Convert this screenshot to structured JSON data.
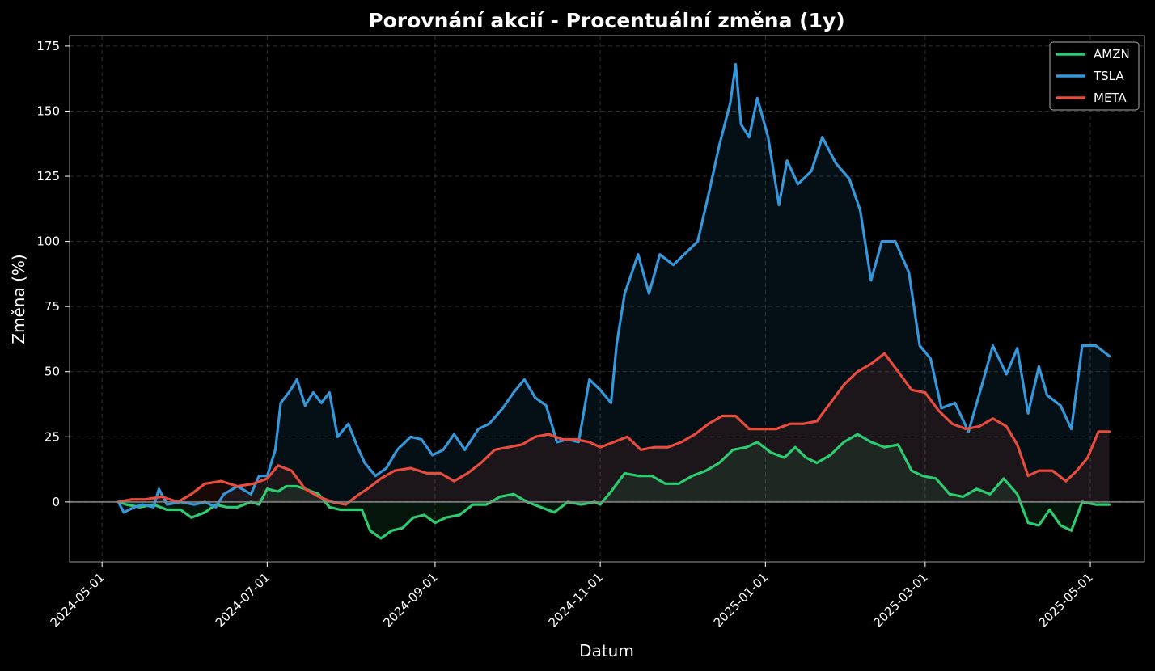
{
  "chart_data": {
    "type": "line",
    "title": "Porovnání akcií - Procentuální změna (1y)",
    "xlabel": "Datum",
    "ylabel": "Změna (%)",
    "xlim": [
      "2024-04-19",
      "2025-05-21"
    ],
    "ylim": [
      -23,
      179
    ],
    "yticks": [
      0,
      25,
      50,
      75,
      100,
      125,
      150,
      175
    ],
    "yticklabels": [
      "0",
      "25",
      "50",
      "75",
      "100",
      "125",
      "150",
      "175"
    ],
    "xticks": [
      "2024-05-01",
      "2024-07-01",
      "2024-09-01",
      "2024-11-01",
      "2025-01-01",
      "2025-03-01",
      "2025-05-01"
    ],
    "xticklabels": [
      "2024-05-01",
      "2024-07-01",
      "2024-09-01",
      "2024-11-01",
      "2025-01-01",
      "2025-03-01",
      "2025-05-01"
    ],
    "grid": true,
    "legend_position": "top-right",
    "baseline": 0,
    "series": [
      {
        "name": "AMZN",
        "color": "#2ecc71",
        "points": [
          [
            "2024-05-07",
            0
          ],
          [
            "2024-05-10",
            -1
          ],
          [
            "2024-05-15",
            -2
          ],
          [
            "2024-05-20",
            -1
          ],
          [
            "2024-05-25",
            -3
          ],
          [
            "2024-05-30",
            -3
          ],
          [
            "2024-06-03",
            -6
          ],
          [
            "2024-06-08",
            -4
          ],
          [
            "2024-06-12",
            -1
          ],
          [
            "2024-06-16",
            -2
          ],
          [
            "2024-06-20",
            -2
          ],
          [
            "2024-06-25",
            0
          ],
          [
            "2024-06-28",
            -1
          ],
          [
            "2024-07-01",
            5
          ],
          [
            "2024-07-05",
            4
          ],
          [
            "2024-07-08",
            6
          ],
          [
            "2024-07-12",
            6
          ],
          [
            "2024-07-15",
            5
          ],
          [
            "2024-07-20",
            3
          ],
          [
            "2024-07-24",
            -2
          ],
          [
            "2024-07-28",
            -3
          ],
          [
            "2024-08-01",
            -3
          ],
          [
            "2024-08-05",
            -3
          ],
          [
            "2024-08-08",
            -11
          ],
          [
            "2024-08-12",
            -14
          ],
          [
            "2024-08-16",
            -11
          ],
          [
            "2024-08-20",
            -10
          ],
          [
            "2024-08-24",
            -6
          ],
          [
            "2024-08-28",
            -5
          ],
          [
            "2024-09-01",
            -8
          ],
          [
            "2024-09-05",
            -6
          ],
          [
            "2024-09-10",
            -5
          ],
          [
            "2024-09-15",
            -1
          ],
          [
            "2024-09-20",
            -1
          ],
          [
            "2024-09-25",
            2
          ],
          [
            "2024-09-30",
            3
          ],
          [
            "2024-10-05",
            0
          ],
          [
            "2024-10-10",
            -2
          ],
          [
            "2024-10-15",
            -4
          ],
          [
            "2024-10-20",
            0
          ],
          [
            "2024-10-25",
            -1
          ],
          [
            "2024-10-30",
            0
          ],
          [
            "2024-11-01",
            -1
          ],
          [
            "2024-11-05",
            4
          ],
          [
            "2024-11-10",
            11
          ],
          [
            "2024-11-15",
            10
          ],
          [
            "2024-11-20",
            10
          ],
          [
            "2024-11-25",
            7
          ],
          [
            "2024-11-30",
            7
          ],
          [
            "2024-12-05",
            10
          ],
          [
            "2024-12-10",
            12
          ],
          [
            "2024-12-15",
            15
          ],
          [
            "2024-12-20",
            20
          ],
          [
            "2024-12-25",
            21
          ],
          [
            "2024-12-29",
            23
          ],
          [
            "2025-01-03",
            19
          ],
          [
            "2025-01-08",
            17
          ],
          [
            "2025-01-12",
            21
          ],
          [
            "2025-01-16",
            17
          ],
          [
            "2025-01-20",
            15
          ],
          [
            "2025-01-25",
            18
          ],
          [
            "2025-01-30",
            23
          ],
          [
            "2025-02-04",
            26
          ],
          [
            "2025-02-09",
            23
          ],
          [
            "2025-02-14",
            21
          ],
          [
            "2025-02-19",
            22
          ],
          [
            "2025-02-24",
            12
          ],
          [
            "2025-02-28",
            10
          ],
          [
            "2025-03-05",
            9
          ],
          [
            "2025-03-10",
            3
          ],
          [
            "2025-03-15",
            2
          ],
          [
            "2025-03-20",
            5
          ],
          [
            "2025-03-25",
            3
          ],
          [
            "2025-03-30",
            9
          ],
          [
            "2025-04-04",
            3
          ],
          [
            "2025-04-08",
            -8
          ],
          [
            "2025-04-12",
            -9
          ],
          [
            "2025-04-16",
            -3
          ],
          [
            "2025-04-20",
            -9
          ],
          [
            "2025-04-24",
            -11
          ],
          [
            "2025-04-28",
            0
          ],
          [
            "2025-05-03",
            -1
          ],
          [
            "2025-05-08",
            -1
          ]
        ]
      },
      {
        "name": "TSLA",
        "color": "#3498db",
        "points": [
          [
            "2024-05-07",
            0
          ],
          [
            "2024-05-09",
            -4
          ],
          [
            "2024-05-13",
            -2
          ],
          [
            "2024-05-16",
            -1
          ],
          [
            "2024-05-20",
            -2
          ],
          [
            "2024-05-22",
            5
          ],
          [
            "2024-05-25",
            -1
          ],
          [
            "2024-05-30",
            0
          ],
          [
            "2024-06-04",
            -1
          ],
          [
            "2024-06-08",
            0
          ],
          [
            "2024-06-12",
            -2
          ],
          [
            "2024-06-15",
            3
          ],
          [
            "2024-06-20",
            6
          ],
          [
            "2024-06-25",
            3
          ],
          [
            "2024-06-28",
            10
          ],
          [
            "2024-07-01",
            10
          ],
          [
            "2024-07-04",
            20
          ],
          [
            "2024-07-06",
            38
          ],
          [
            "2024-07-09",
            42
          ],
          [
            "2024-07-12",
            47
          ],
          [
            "2024-07-15",
            37
          ],
          [
            "2024-07-18",
            42
          ],
          [
            "2024-07-21",
            38
          ],
          [
            "2024-07-24",
            42
          ],
          [
            "2024-07-27",
            25
          ],
          [
            "2024-07-31",
            30
          ],
          [
            "2024-08-03",
            22
          ],
          [
            "2024-08-06",
            15
          ],
          [
            "2024-08-10",
            10
          ],
          [
            "2024-08-14",
            13
          ],
          [
            "2024-08-18",
            20
          ],
          [
            "2024-08-23",
            25
          ],
          [
            "2024-08-27",
            24
          ],
          [
            "2024-08-31",
            18
          ],
          [
            "2024-09-04",
            20
          ],
          [
            "2024-09-08",
            26
          ],
          [
            "2024-09-12",
            20
          ],
          [
            "2024-09-17",
            28
          ],
          [
            "2024-09-21",
            30
          ],
          [
            "2024-09-26",
            36
          ],
          [
            "2024-09-30",
            42
          ],
          [
            "2024-10-04",
            47
          ],
          [
            "2024-10-08",
            40
          ],
          [
            "2024-10-12",
            37
          ],
          [
            "2024-10-16",
            23
          ],
          [
            "2024-10-20",
            24
          ],
          [
            "2024-10-24",
            23
          ],
          [
            "2024-10-28",
            47
          ],
          [
            "2024-11-01",
            43
          ],
          [
            "2024-11-05",
            38
          ],
          [
            "2024-11-07",
            60
          ],
          [
            "2024-11-10",
            80
          ],
          [
            "2024-11-15",
            95
          ],
          [
            "2024-11-19",
            80
          ],
          [
            "2024-11-23",
            95
          ],
          [
            "2024-11-28",
            91
          ],
          [
            "2024-12-03",
            96
          ],
          [
            "2024-12-07",
            100
          ],
          [
            "2024-12-11",
            118
          ],
          [
            "2024-12-15",
            137
          ],
          [
            "2024-12-19",
            153
          ],
          [
            "2024-12-21",
            168
          ],
          [
            "2024-12-23",
            145
          ],
          [
            "2024-12-26",
            140
          ],
          [
            "2024-12-29",
            155
          ],
          [
            "2025-01-02",
            140
          ],
          [
            "2025-01-06",
            114
          ],
          [
            "2025-01-09",
            131
          ],
          [
            "2025-01-13",
            122
          ],
          [
            "2025-01-18",
            127
          ],
          [
            "2025-01-22",
            140
          ],
          [
            "2025-01-27",
            130
          ],
          [
            "2025-02-01",
            124
          ],
          [
            "2025-02-05",
            112
          ],
          [
            "2025-02-09",
            85
          ],
          [
            "2025-02-13",
            100
          ],
          [
            "2025-02-18",
            100
          ],
          [
            "2025-02-23",
            88
          ],
          [
            "2025-02-27",
            60
          ],
          [
            "2025-03-03",
            55
          ],
          [
            "2025-03-07",
            36
          ],
          [
            "2025-03-12",
            38
          ],
          [
            "2025-03-17",
            27
          ],
          [
            "2025-03-22",
            45
          ],
          [
            "2025-03-26",
            60
          ],
          [
            "2025-03-31",
            49
          ],
          [
            "2025-04-04",
            59
          ],
          [
            "2025-04-08",
            34
          ],
          [
            "2025-04-12",
            52
          ],
          [
            "2025-04-15",
            41
          ],
          [
            "2025-04-20",
            37
          ],
          [
            "2025-04-24",
            28
          ],
          [
            "2025-04-28",
            60
          ],
          [
            "2025-05-03",
            60
          ],
          [
            "2025-05-08",
            56
          ]
        ]
      },
      {
        "name": "META",
        "color": "#e74c3c",
        "points": [
          [
            "2024-05-07",
            0
          ],
          [
            "2024-05-12",
            1
          ],
          [
            "2024-05-17",
            1
          ],
          [
            "2024-05-23",
            2
          ],
          [
            "2024-05-29",
            0
          ],
          [
            "2024-06-03",
            3
          ],
          [
            "2024-06-08",
            7
          ],
          [
            "2024-06-14",
            8
          ],
          [
            "2024-06-20",
            6
          ],
          [
            "2024-06-26",
            7
          ],
          [
            "2024-07-01",
            9
          ],
          [
            "2024-07-05",
            14
          ],
          [
            "2024-07-10",
            12
          ],
          [
            "2024-07-15",
            5
          ],
          [
            "2024-07-20",
            2
          ],
          [
            "2024-07-25",
            0
          ],
          [
            "2024-07-30",
            -1
          ],
          [
            "2024-08-04",
            3
          ],
          [
            "2024-08-07",
            5
          ],
          [
            "2024-08-12",
            9
          ],
          [
            "2024-08-17",
            12
          ],
          [
            "2024-08-23",
            13
          ],
          [
            "2024-08-29",
            11
          ],
          [
            "2024-09-03",
            11
          ],
          [
            "2024-09-08",
            8
          ],
          [
            "2024-09-13",
            11
          ],
          [
            "2024-09-18",
            15
          ],
          [
            "2024-09-23",
            20
          ],
          [
            "2024-09-28",
            21
          ],
          [
            "2024-10-03",
            22
          ],
          [
            "2024-10-08",
            25
          ],
          [
            "2024-10-13",
            26
          ],
          [
            "2024-10-18",
            24
          ],
          [
            "2024-10-23",
            24
          ],
          [
            "2024-10-28",
            23
          ],
          [
            "2024-11-01",
            21
          ],
          [
            "2024-11-06",
            23
          ],
          [
            "2024-11-11",
            25
          ],
          [
            "2024-11-16",
            20
          ],
          [
            "2024-11-21",
            21
          ],
          [
            "2024-11-26",
            21
          ],
          [
            "2024-12-01",
            23
          ],
          [
            "2024-12-06",
            26
          ],
          [
            "2024-12-11",
            30
          ],
          [
            "2024-12-16",
            33
          ],
          [
            "2024-12-21",
            33
          ],
          [
            "2024-12-26",
            28
          ],
          [
            "2024-12-31",
            28
          ],
          [
            "2025-01-05",
            28
          ],
          [
            "2025-01-10",
            30
          ],
          [
            "2025-01-15",
            30
          ],
          [
            "2025-01-20",
            31
          ],
          [
            "2025-01-25",
            38
          ],
          [
            "2025-01-30",
            45
          ],
          [
            "2025-02-04",
            50
          ],
          [
            "2025-02-09",
            53
          ],
          [
            "2025-02-14",
            57
          ],
          [
            "2025-02-19",
            50
          ],
          [
            "2025-02-24",
            43
          ],
          [
            "2025-03-01",
            42
          ],
          [
            "2025-03-06",
            35
          ],
          [
            "2025-03-11",
            30
          ],
          [
            "2025-03-16",
            28
          ],
          [
            "2025-03-21",
            29
          ],
          [
            "2025-03-26",
            32
          ],
          [
            "2025-03-31",
            29
          ],
          [
            "2025-04-04",
            22
          ],
          [
            "2025-04-08",
            10
          ],
          [
            "2025-04-12",
            12
          ],
          [
            "2025-04-17",
            12
          ],
          [
            "2025-04-22",
            8
          ],
          [
            "2025-04-26",
            12
          ],
          [
            "2025-04-30",
            17
          ],
          [
            "2025-05-04",
            27
          ],
          [
            "2025-05-08",
            27
          ]
        ]
      }
    ]
  }
}
